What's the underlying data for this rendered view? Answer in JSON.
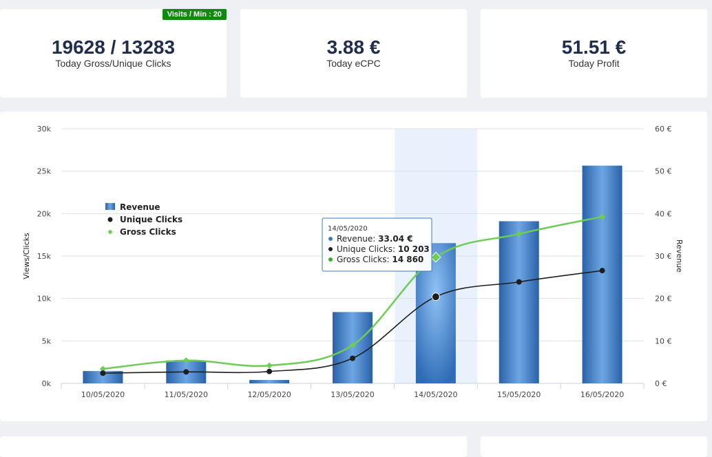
{
  "stats": {
    "clicks": {
      "value": "19628 / 13283",
      "label": "Today Gross/Unique Clicks",
      "badge": "Visits / Min : 20"
    },
    "ecpc": {
      "value": "3.88 €",
      "label": "Today eCPC"
    },
    "profit": {
      "value": "51.51 €",
      "label": "Today Profit"
    }
  },
  "colors": {
    "revenue": "#3b78c2",
    "unique": "#1e1e1e",
    "gross": "#6ccc55",
    "badge": "#128a12",
    "highlight": "#e8f1fc"
  },
  "chart_data": {
    "type": "bar",
    "categories": [
      "10/05/2020",
      "11/05/2020",
      "12/05/2020",
      "13/05/2020",
      "14/05/2020",
      "15/05/2020",
      "16/05/2020"
    ],
    "left_ticks": [
      "0k",
      "5k",
      "10k",
      "15k",
      "20k",
      "25k",
      "30k"
    ],
    "right_ticks": [
      "0 €",
      "10 €",
      "20 €",
      "30 €",
      "40 €",
      "50 €",
      "60 €"
    ],
    "ylabel_left": "Views/Clicks",
    "ylabel_right": "Revenue",
    "ylim_left": [
      0,
      30000
    ],
    "ylim_right": [
      0,
      60
    ],
    "grid": true,
    "legend_placement": "left",
    "highlighted_category": "14/05/2020",
    "series": [
      {
        "name": "Revenue",
        "type": "bar",
        "axis": "right",
        "values": [
          2.9,
          5.4,
          0.8,
          16.8,
          33.04,
          38.2,
          51.3
        ]
      },
      {
        "name": "Unique Clicks",
        "type": "line",
        "axis": "left",
        "values": [
          1200,
          1350,
          1400,
          2950,
          10203,
          11950,
          13283
        ]
      },
      {
        "name": "Gross Clicks",
        "type": "line",
        "axis": "left",
        "values": [
          1700,
          2700,
          2100,
          4500,
          14860,
          17600,
          19628
        ]
      }
    ],
    "tooltip": {
      "title": "14/05/2020",
      "rows": [
        {
          "label": "Revenue: ",
          "value": "33.04 €"
        },
        {
          "label": "Unique Clicks: ",
          "value": "10 203"
        },
        {
          "label": "Gross Clicks: ",
          "value": "14 860"
        }
      ]
    }
  }
}
